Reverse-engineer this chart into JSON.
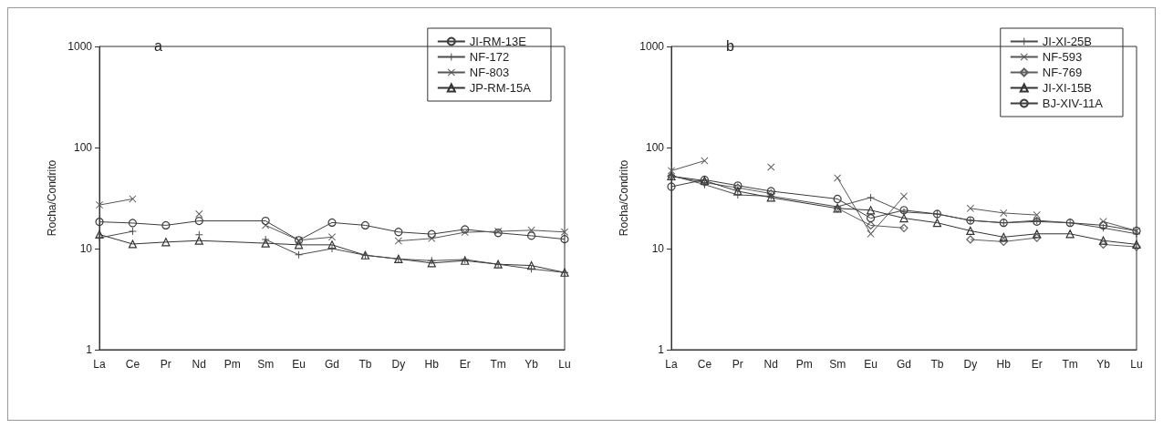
{
  "chart_data": [
    {
      "type": "line",
      "title": "a",
      "ylabel": "Rocha/Condrito",
      "log": true,
      "ylim": [
        1,
        1000
      ],
      "yticks": [
        1,
        10,
        100,
        1000
      ],
      "legend": "top right",
      "categories": [
        "La",
        "Ce",
        "Pr",
        "Nd",
        "Pm",
        "Sm",
        "Eu",
        "Gd",
        "Tb",
        "Dy",
        "Hb",
        "Er",
        "Tm",
        "Yb",
        "Lu"
      ],
      "series": [
        {
          "name": "JI-RM-13E",
          "color": "#3c3c3c",
          "marker": "circle",
          "values": [
            18.4,
            17.9,
            17,
            18.8,
            null,
            18.8,
            12.1,
            18.1,
            17,
            14.6,
            13.9,
            15.5,
            14.3,
            13.4,
            12.4
          ]
        },
        {
          "name": "NF-172",
          "color": "#4a4a4a",
          "marker": "plus",
          "values": [
            12.8,
            14.8,
            null,
            13.7,
            null,
            12.3,
            8.7,
            10,
            8.6,
            7.9,
            7.6,
            7.8,
            7.0,
            6.3,
            5.8
          ]
        },
        {
          "name": "NF-803",
          "color": "#555555",
          "marker": "cross",
          "values": [
            27,
            31,
            null,
            22,
            null,
            17,
            12.1,
            13,
            null,
            11.9,
            12.6,
            14.5,
            14.8,
            15.2,
            14.6
          ]
        },
        {
          "name": "JP-RM-15A",
          "color": "#333333",
          "marker": "triangle",
          "values": [
            13.8,
            11.1,
            11.6,
            12,
            null,
            11.3,
            10.9,
            10.9,
            8.6,
            7.9,
            7.2,
            7.6,
            7.0,
            6.8,
            5.8
          ]
        }
      ]
    },
    {
      "type": "line",
      "title": "b",
      "ylabel": "Rocha/Condrito",
      "log": true,
      "ylim": [
        1,
        1000
      ],
      "yticks": [
        1,
        10,
        100,
        1000
      ],
      "legend": "top right",
      "categories": [
        "La",
        "Ce",
        "Pr",
        "Nd",
        "Pm",
        "Sm",
        "Eu",
        "Gd",
        "Tb",
        "Dy",
        "Hb",
        "Er",
        "Tm",
        "Yb",
        "Lu"
      ],
      "series": [
        {
          "name": "JI-XI-25B",
          "color": "#4a4a4a",
          "marker": "plus",
          "values": [
            53,
            43,
            34,
            33,
            null,
            26,
            32,
            23,
            22,
            19,
            18,
            19,
            18,
            16,
            14
          ]
        },
        {
          "name": "NF-593",
          "color": "#555555",
          "marker": "cross",
          "values": [
            59,
            74,
            null,
            64,
            null,
            50,
            14,
            33,
            null,
            25,
            22.5,
            21.5,
            null,
            18.5,
            15
          ]
        },
        {
          "name": "NF-769",
          "color": "#5e5e5e",
          "marker": "diamond",
          "values": [
            52,
            45,
            40,
            35,
            null,
            25,
            17,
            16,
            null,
            12.3,
            11.7,
            12.8,
            null,
            11,
            10.4
          ]
        },
        {
          "name": "JI-XI-15B",
          "color": "#333333",
          "marker": "triangle",
          "values": [
            52,
            47,
            37,
            32,
            null,
            25,
            24,
            20,
            18,
            15,
            13,
            14,
            14,
            12,
            11
          ]
        },
        {
          "name": "BJ-XIV-11A",
          "color": "#3c3c3c",
          "marker": "circle",
          "values": [
            41,
            48,
            42,
            37,
            null,
            31,
            20,
            24,
            22,
            19,
            18,
            18.5,
            18,
            17,
            15
          ]
        }
      ]
    }
  ]
}
